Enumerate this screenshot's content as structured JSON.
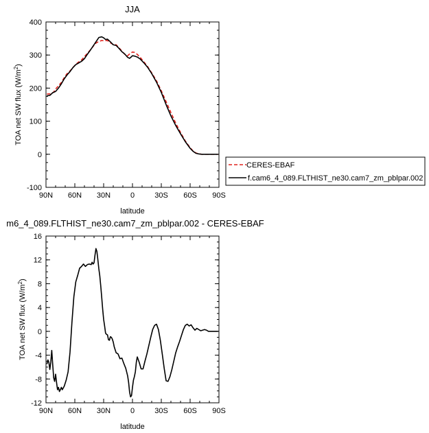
{
  "chart_data": [
    {
      "type": "line",
      "title": "JJA",
      "xlabel": "latitude",
      "ylabel": "TOA net SW flux (W/m",
      "ylabel_sup": "2",
      "ylabel_end": ")",
      "xlim": [
        90,
        -90
      ],
      "ylim": [
        -100,
        400
      ],
      "xticks": [
        90,
        60,
        30,
        0,
        -30,
        -60,
        -90
      ],
      "xtick_labels": [
        "90N",
        "60N",
        "30N",
        "0",
        "30S",
        "60S",
        "90S"
      ],
      "yticks": [
        -100,
        0,
        100,
        200,
        300,
        400
      ],
      "ytick_labels": [
        "-100",
        "0",
        "100",
        "200",
        "300",
        "400"
      ],
      "legend": "right",
      "series": [
        {
          "name": "CERES-EBAF",
          "color": "#e0201b",
          "dash": "dashed",
          "x": [
            89,
            85,
            82,
            80,
            77,
            74,
            71,
            68,
            65,
            62,
            59,
            56,
            53,
            50,
            47,
            44,
            41,
            38,
            35,
            32,
            29,
            26,
            23,
            20,
            17,
            14,
            11,
            8,
            5,
            2,
            0,
            -2,
            -5,
            -8,
            -12,
            -16,
            -20,
            -25,
            -30,
            -35,
            -40,
            -45,
            -50,
            -55,
            -60,
            -63,
            -66,
            -69,
            -72,
            -75,
            -80,
            -85,
            -89
          ],
          "y": [
            182,
            183,
            188,
            197,
            207,
            217,
            232,
            244,
            252,
            262,
            272,
            279,
            285,
            295,
            305,
            315,
            326,
            336,
            341,
            344,
            343,
            344,
            337,
            332,
            331,
            322,
            312,
            302,
            298,
            306,
            309,
            308,
            302,
            293,
            279,
            264,
            246,
            222,
            192,
            159,
            126,
            94,
            66,
            40,
            20,
            10,
            4,
            1,
            0,
            0,
            0,
            0,
            0
          ]
        },
        {
          "name": "f.cam6_4_089.FLTHIST_ne30.cam7_zm_pblpar.002",
          "color": "#000000",
          "dash": "solid",
          "x": [
            89,
            86,
            83,
            80,
            77,
            74,
            71,
            68,
            65,
            62,
            59,
            56,
            53,
            50,
            47,
            44,
            41,
            38,
            35,
            32,
            30,
            28,
            26,
            23,
            20,
            17,
            14,
            11,
            8,
            5,
            3,
            1,
            0,
            -2,
            -5,
            -8,
            -12,
            -16,
            -20,
            -25,
            -30,
            -35,
            -40,
            -45,
            -50,
            -55,
            -60,
            -63,
            -66,
            -69,
            -72,
            -75,
            -80,
            -85,
            -89
          ],
          "y": [
            177,
            178,
            186,
            190,
            200,
            213,
            228,
            240,
            250,
            262,
            271,
            276,
            281,
            289,
            302,
            314,
            327,
            340,
            353,
            355,
            352,
            347,
            348,
            340,
            331,
            329,
            320,
            310,
            303,
            293,
            290,
            295,
            298,
            297,
            294,
            288,
            276,
            262,
            244,
            218,
            187,
            150,
            116,
            87,
            62,
            38,
            18,
            9,
            3,
            1,
            0,
            0,
            0,
            0,
            0
          ]
        }
      ]
    },
    {
      "type": "line",
      "title": "m6_4_089.FLTHIST_ne30.cam7_zm_pblpar.002 - CERES-EBAF",
      "xlabel": "latitude",
      "ylabel": "TOA net SW flux (W/m",
      "ylabel_sup": "2",
      "ylabel_end": ")",
      "xlim": [
        90,
        -90
      ],
      "ylim": [
        -12,
        16
      ],
      "xticks": [
        90,
        60,
        30,
        0,
        -30,
        -60,
        -90
      ],
      "xtick_labels": [
        "90N",
        "60N",
        "30N",
        "0",
        "30S",
        "60S",
        "90S"
      ],
      "yticks": [
        -12,
        -8,
        -4,
        0,
        4,
        8,
        12,
        16
      ],
      "ytick_labels": [
        "-12",
        "-8",
        "-4",
        "0",
        "4",
        "8",
        "12",
        "16"
      ],
      "series": [
        {
          "name": "",
          "color": "#000000",
          "dash": "solid",
          "x": [
            89,
            88,
            87,
            86,
            85,
            84,
            83,
            82,
            81,
            80,
            79,
            78,
            77,
            76,
            75,
            74,
            73,
            71,
            69,
            67,
            65,
            63,
            61,
            59,
            57,
            55,
            53,
            51,
            49,
            47,
            45,
            43,
            42,
            41,
            40,
            39,
            38,
            37,
            36,
            35,
            34,
            33,
            32,
            31,
            30,
            29,
            28,
            27,
            26,
            25,
            24,
            23,
            22,
            21,
            20,
            19,
            18,
            17,
            15,
            13,
            11,
            9,
            7,
            5,
            4,
            3,
            2,
            1,
            0,
            -1,
            -2,
            -3,
            -4,
            -5,
            -7,
            -9,
            -11,
            -13,
            -15,
            -17,
            -19,
            -21,
            -23,
            -25,
            -27,
            -29,
            -31,
            -33,
            -35,
            -37,
            -39,
            -41,
            -43,
            -45,
            -47,
            -49,
            -51,
            -53,
            -55,
            -57,
            -59,
            -61,
            -63,
            -65,
            -67,
            -69,
            -71,
            -73,
            -75,
            -77,
            -79,
            -81,
            -83,
            -85,
            -87,
            -89
          ],
          "y": [
            -5.5,
            -4.8,
            -5.2,
            -6.4,
            -5.2,
            -3.2,
            -5.6,
            -7.8,
            -8.4,
            -7.2,
            -8.6,
            -9.8,
            -9.4,
            -10.1,
            -9.8,
            -9.4,
            -9.8,
            -9.2,
            -8.2,
            -6.8,
            -3.5,
            1.5,
            5.8,
            8.3,
            9.4,
            10.6,
            10.9,
            11.3,
            10.9,
            11.2,
            11.3,
            11.2,
            11.6,
            11.3,
            11.5,
            12.8,
            13.9,
            13.4,
            12.0,
            10.5,
            9.3,
            7.6,
            5.7,
            3.7,
            2.0,
            0.9,
            -0.3,
            -0.5,
            -0.6,
            -1.4,
            -1.5,
            -0.9,
            -1.0,
            -1.3,
            -1.8,
            -2.6,
            -3.1,
            -3.6,
            -3.8,
            -4.6,
            -4.5,
            -5.4,
            -6.2,
            -7.5,
            -8.6,
            -10.2,
            -11.0,
            -10.8,
            -9.4,
            -8.2,
            -7.6,
            -6.8,
            -5.2,
            -4.3,
            -5.2,
            -6.3,
            -6.3,
            -5.0,
            -3.8,
            -2.4,
            -1.0,
            0.3,
            1.0,
            1.2,
            0.3,
            -1.5,
            -3.8,
            -6.2,
            -8.3,
            -8.4,
            -7.6,
            -6.4,
            -5.0,
            -3.6,
            -2.6,
            -1.7,
            -0.7,
            0.3,
            1.0,
            1.2,
            0.9,
            1.1,
            0.6,
            0.2,
            0.5,
            0.3,
            0.1,
            0.2,
            0.3,
            0.2,
            0.0,
            0.0,
            0.0,
            0.0,
            0.0,
            0.0
          ]
        }
      ]
    }
  ]
}
